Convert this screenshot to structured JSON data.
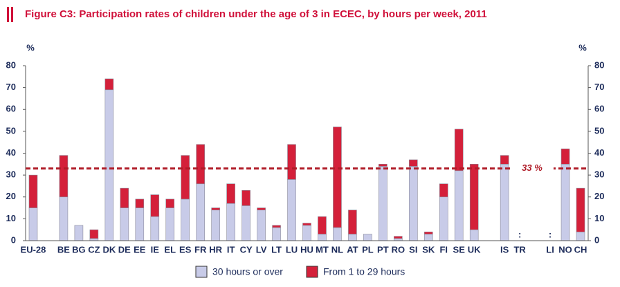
{
  "chart_data": {
    "type": "stacked_bar",
    "title": "Figure C3: Participation rates of children under the age of 3 in ECEC, by hours per week, 2011",
    "y_label": "%",
    "y2_label": "%",
    "categories": [
      "EU-28",
      null,
      "BE",
      "BG",
      "CZ",
      "DK",
      "DE",
      "EE",
      "IE",
      "EL",
      "ES",
      "FR",
      "HR",
      "IT",
      "CY",
      "LV",
      "LT",
      "LU",
      "HU",
      "MT",
      "NL",
      "AT",
      "PL",
      "PT",
      "RO",
      "SI",
      "SK",
      "FI",
      "SE",
      "UK",
      null,
      "IS",
      "TR",
      null,
      "LI",
      "NO",
      "CH"
    ],
    "series": [
      {
        "name": "30 hours or over",
        "color": "#c8cbe8",
        "values": [
          15,
          null,
          20,
          7,
          1,
          69,
          15,
          15,
          11,
          15,
          19,
          26,
          14,
          17,
          16,
          14,
          6,
          28,
          7,
          3,
          6,
          3,
          3,
          34,
          1,
          34,
          3,
          20,
          32,
          5,
          null,
          35,
          null,
          null,
          null,
          35,
          4
        ]
      },
      {
        "name": "From 1 to 29 hours",
        "color": "#d4203a",
        "values": [
          15,
          null,
          19,
          0,
          4,
          5,
          9,
          4,
          10,
          4,
          20,
          18,
          1,
          9,
          7,
          1,
          1,
          16,
          1,
          8,
          46,
          11,
          0,
          1,
          1,
          3,
          1,
          6,
          19,
          30,
          null,
          4,
          null,
          null,
          null,
          7,
          20
        ]
      }
    ],
    "missing_label": ":",
    "reference_line": {
      "value": 33,
      "label": "33 %",
      "color": "#b01c28"
    },
    "ylim": [
      0,
      80
    ],
    "yticks": [
      0,
      10,
      20,
      30,
      40,
      50,
      60,
      70,
      80
    ],
    "y2lim": [
      0,
      80
    ],
    "y2ticks": [
      0,
      10,
      20,
      30,
      40,
      50,
      60,
      70,
      80
    ],
    "grid": false
  }
}
